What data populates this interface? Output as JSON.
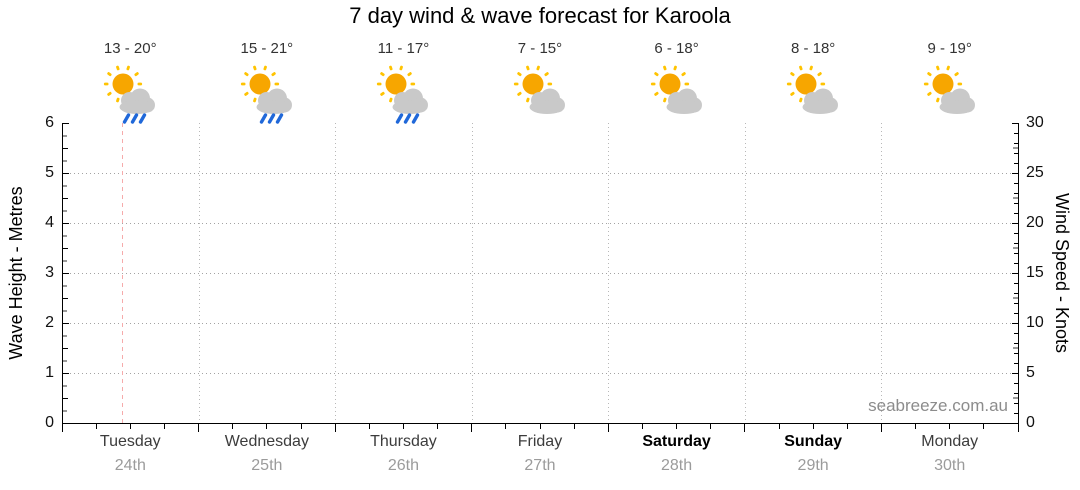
{
  "title": "7 day wind & wave forecast for Karoola",
  "watermark": "seabreeze.com.au",
  "colors": {
    "sun": "#F7A600",
    "sun_rays": "#FFC300",
    "cloud": "#C9C9C9",
    "rain": "#2068D9",
    "time_marker": "#F6ABAB",
    "grid": "#A3A3A3",
    "date_text": "#9B9B9B"
  },
  "chart_data": {
    "type": "line",
    "title": "7 day wind & wave forecast for Karoola",
    "subtitle": "",
    "legend": [],
    "series": [],
    "days": [
      {
        "name": "Tuesday",
        "date": "24th",
        "temp_range": "13 - 20°",
        "temp_low": 13,
        "temp_high": 20,
        "icon": "sun-cloud-rain",
        "weekend": false
      },
      {
        "name": "Wednesday",
        "date": "25th",
        "temp_range": "15 - 21°",
        "temp_low": 15,
        "temp_high": 21,
        "icon": "sun-cloud-rain",
        "weekend": false
      },
      {
        "name": "Thursday",
        "date": "26th",
        "temp_range": "11 - 17°",
        "temp_low": 11,
        "temp_high": 17,
        "icon": "sun-cloud-rain",
        "weekend": false
      },
      {
        "name": "Friday",
        "date": "27th",
        "temp_range": "7 - 15°",
        "temp_low": 7,
        "temp_high": 15,
        "icon": "sun-cloud",
        "weekend": false
      },
      {
        "name": "Saturday",
        "date": "28th",
        "temp_range": "6 - 18°",
        "temp_low": 6,
        "temp_high": 18,
        "icon": "sun-cloud",
        "weekend": true
      },
      {
        "name": "Sunday",
        "date": "29th",
        "temp_range": "8 - 18°",
        "temp_low": 8,
        "temp_high": 18,
        "icon": "sun-cloud",
        "weekend": true
      },
      {
        "name": "Monday",
        "date": "30th",
        "temp_range": "9 - 19°",
        "temp_low": 9,
        "temp_high": 19,
        "icon": "sun-cloud",
        "weekend": false
      }
    ],
    "left_axis": {
      "label": "Wave Height - Metres",
      "min": 0,
      "max": 6,
      "major_step": 1,
      "minor_step": 0.25,
      "ticks": [
        0,
        1,
        2,
        3,
        4,
        5,
        6
      ]
    },
    "right_axis": {
      "label": "Wind Speed - Knots",
      "min": 0,
      "max": 30,
      "major_step": 5,
      "minor_step": 1,
      "ticks": [
        0,
        5,
        10,
        15,
        20,
        25,
        30
      ]
    },
    "x_axis": {
      "minor_ticks_per_day": 4
    },
    "grid": {
      "horizontal_at_metres": [
        1,
        2,
        3,
        4,
        5
      ],
      "vertical_at_day_boundaries": true
    },
    "current_time_marker": {
      "day_index": 0,
      "fraction_of_day": 0.44
    }
  }
}
